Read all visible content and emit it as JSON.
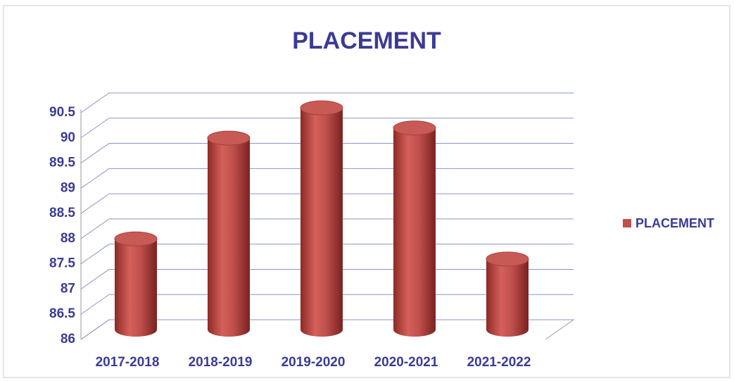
{
  "chart_data": {
    "type": "bar",
    "title": "PLACEMENT",
    "categories": [
      "2017-2018",
      "2018-2019",
      "2019-2020",
      "2020-2021",
      "2021-2022"
    ],
    "series": [
      {
        "name": "PLACEMENT",
        "color": "#c0504d",
        "values": [
          87.8,
          89.8,
          90.4,
          90.0,
          87.4
        ]
      }
    ],
    "ylim": [
      86,
      90.5
    ],
    "yticks": [
      86,
      86.5,
      87,
      87.5,
      88,
      88.5,
      89,
      89.5,
      90,
      90.5
    ],
    "grid": true,
    "legend": "right"
  }
}
